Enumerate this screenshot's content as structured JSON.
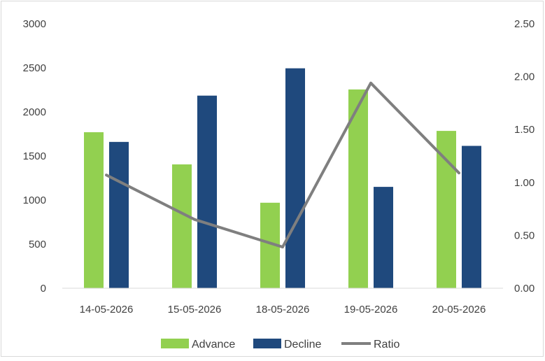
{
  "chart_data": {
    "type": "bar",
    "categories": [
      "14-05-2026",
      "15-05-2026",
      "18-05-2026",
      "19-05-2026",
      "20-05-2026"
    ],
    "series": [
      {
        "name": "Advance",
        "type": "bar",
        "axis": "left",
        "color": "#92d050",
        "values": [
          1770,
          1405,
          970,
          2255,
          1785
        ]
      },
      {
        "name": "Decline",
        "type": "bar",
        "axis": "left",
        "color": "#1f497d",
        "values": [
          1660,
          2185,
          2495,
          1150,
          1615
        ]
      },
      {
        "name": "Ratio",
        "type": "line",
        "axis": "right",
        "color": "#7f7f7f",
        "values": [
          1.07,
          0.65,
          0.39,
          1.94,
          1.09
        ]
      }
    ],
    "y_left": {
      "min": 0,
      "max": 3000,
      "ticks": [
        "0",
        "500",
        "1000",
        "1500",
        "2000",
        "2500",
        "3000"
      ]
    },
    "y_right": {
      "min": 0,
      "max": 2.5,
      "ticks": [
        "0.00",
        "0.50",
        "1.00",
        "1.50",
        "2.00",
        "2.50"
      ]
    },
    "grid": false,
    "legend": "bottom-center"
  }
}
